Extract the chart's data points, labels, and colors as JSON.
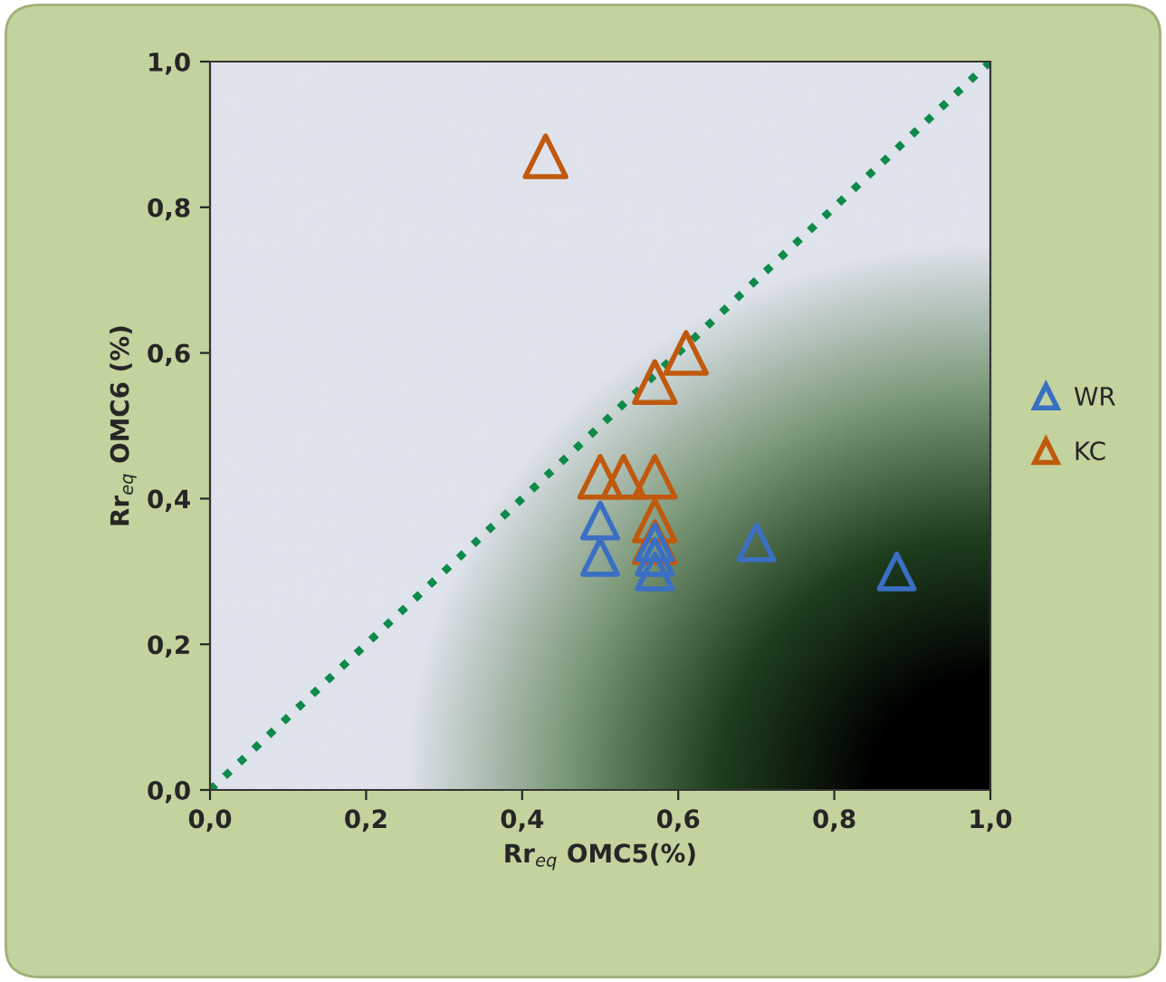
{
  "chart_data": {
    "type": "scatter",
    "xlabel": "Rr$_{eq}$ OMC5(%)",
    "ylabel": "Rr$_{eq}$ OMC6 (%)",
    "series": [
      {
        "name": "WR",
        "color": "#3a6fc4",
        "marker": "triangle",
        "x": [
          0.5,
          0.5,
          0.57,
          0.57,
          0.57,
          0.7,
          0.88
        ],
        "values": [
          0.37,
          0.32,
          0.34,
          0.32,
          0.3,
          0.34,
          0.3
        ]
      },
      {
        "name": "KC",
        "color": "#c0590e",
        "marker": "triangle",
        "x": [
          0.43,
          0.61,
          0.57,
          0.5,
          0.53,
          0.57,
          0.57,
          0.57
        ],
        "values": [
          0.87,
          0.6,
          0.56,
          0.43,
          0.43,
          0.43,
          0.37,
          0.34
        ]
      },
      {
        "type": "line",
        "color": "#0e8a4a",
        "marker": "none",
        "line_style": "dotted",
        "x": [
          0.0,
          1.0
        ],
        "values": [
          0.0,
          1.0
        ]
      }
    ],
    "xlim": [
      0.0,
      1.0
    ],
    "ylim": [
      0.0,
      1.0
    ],
    "xticks": [
      {
        "value": 0.0,
        "label": "0,0"
      },
      {
        "value": 0.2,
        "label": "0,2"
      },
      {
        "value": 0.4,
        "label": "0,4"
      },
      {
        "value": 0.6,
        "label": "0,6"
      },
      {
        "value": 0.8,
        "label": "0,8"
      },
      {
        "value": 1.0,
        "label": "1,0"
      }
    ],
    "yticks": [
      {
        "value": 0.0,
        "label": "0,0"
      },
      {
        "value": 0.2,
        "label": "0,2"
      },
      {
        "value": 0.4,
        "label": "0,4"
      },
      {
        "value": 0.6,
        "label": "0,6"
      },
      {
        "value": 0.8,
        "label": "0,8"
      },
      {
        "value": 1.0,
        "label": "1,0"
      }
    ],
    "grid": false,
    "legend": "right"
  }
}
